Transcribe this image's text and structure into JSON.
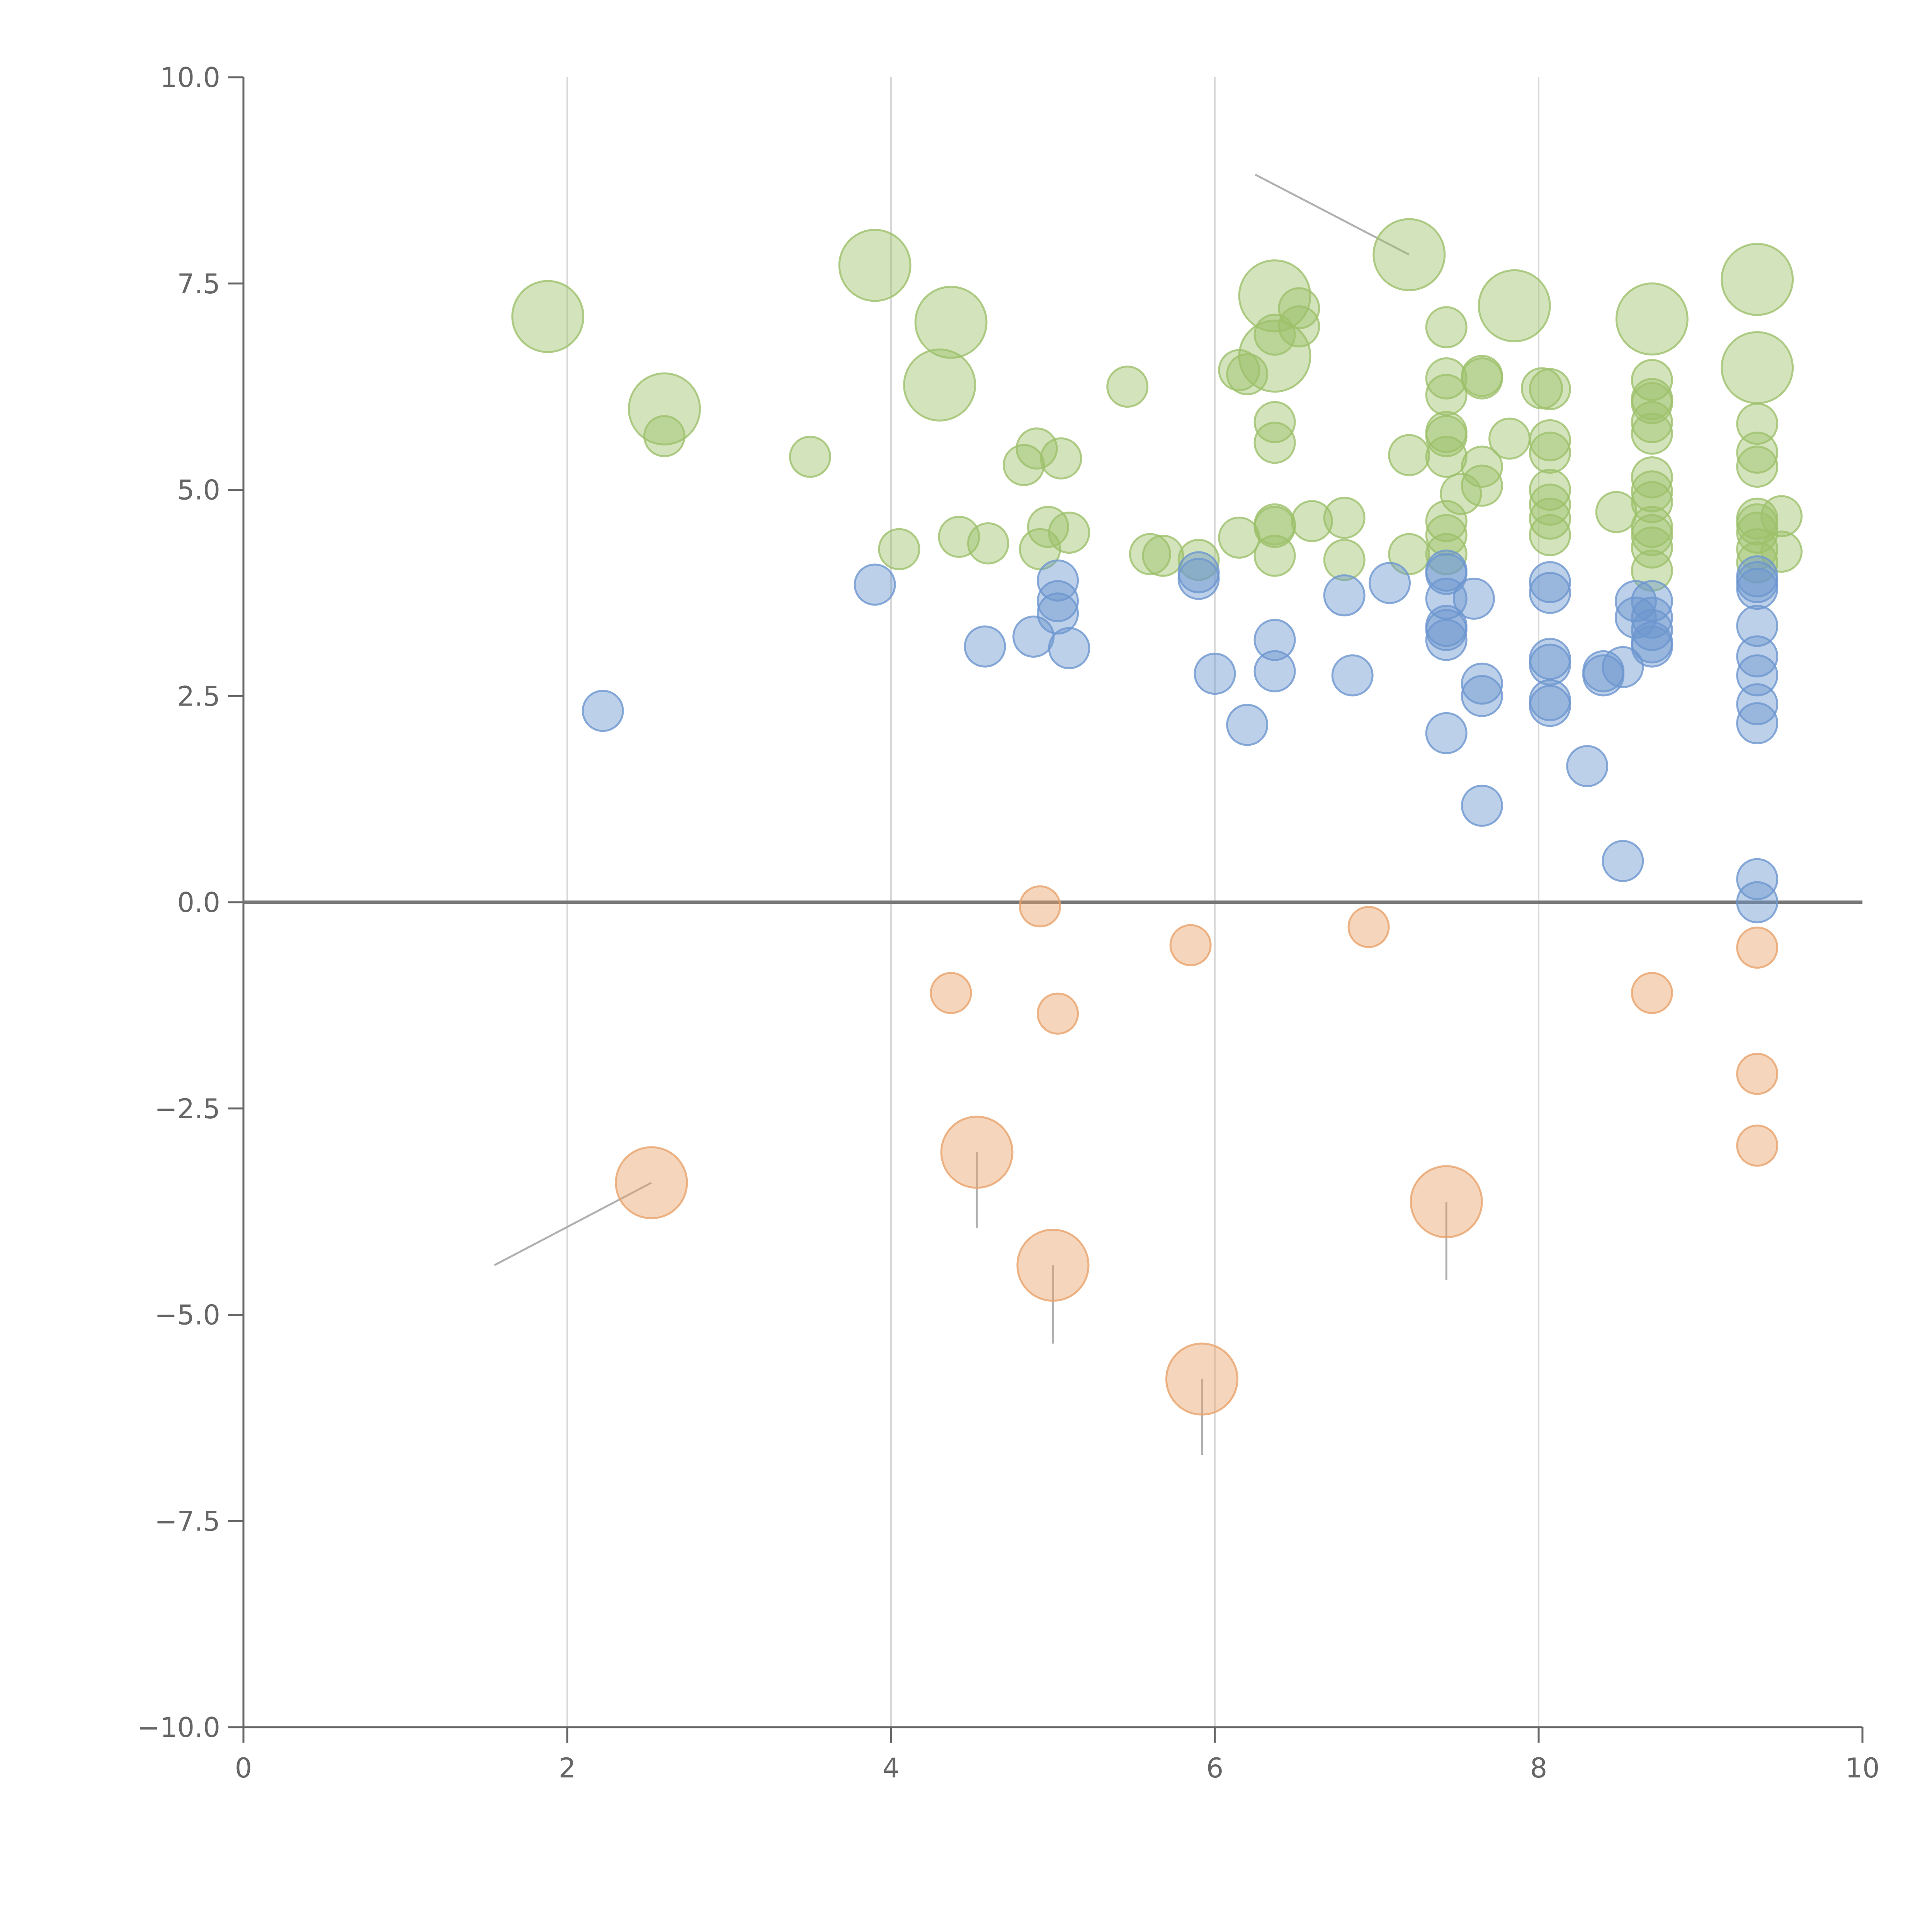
{
  "chart_data": {
    "type": "scatter",
    "title": "",
    "xlabel": "",
    "ylabel": "",
    "xlim": [
      0,
      10
    ],
    "ylim": [
      -10,
      10
    ],
    "x_ticks": [
      0,
      2,
      4,
      6,
      8,
      10
    ],
    "x_tick_labels": [
      "0",
      "2",
      "4",
      "6",
      "8",
      "10"
    ],
    "y_ticks": [
      10,
      7.5,
      5,
      2.5,
      0,
      -2.5,
      -5,
      -7.5,
      -10
    ],
    "y_tick_labels": [
      "10.0",
      "7.5",
      "5.0",
      "2.5",
      "0.0",
      "−2.5",
      "−5.0",
      "−7.5",
      "−10.0"
    ],
    "vertical_gridlines_at": [
      2,
      4,
      6,
      8
    ],
    "zero_line": true,
    "colors": {
      "green": "#9dc16b",
      "blue": "#6d96cf",
      "orange": "#e9a36b",
      "axis": "#666666",
      "grid": "#d9d9d9",
      "zero_line": "#777777",
      "leader": "#b0b0b0"
    },
    "series": [
      {
        "name": "green-large",
        "color": "green",
        "size": "large",
        "points": [
          [
            1.88,
            7.1
          ],
          [
            2.6,
            5.98
          ],
          [
            3.9,
            7.72
          ],
          [
            4.37,
            7.03
          ],
          [
            4.3,
            6.27
          ],
          [
            6.37,
            7.35
          ],
          [
            6.37,
            6.62
          ],
          [
            7.2,
            7.85
          ],
          [
            7.85,
            7.23
          ],
          [
            8.7,
            7.07
          ],
          [
            9.35,
            7.55
          ],
          [
            9.35,
            6.48
          ]
        ]
      },
      {
        "name": "green-small",
        "color": "green",
        "size": "small",
        "points": [
          [
            2.6,
            5.65
          ],
          [
            3.5,
            5.4
          ],
          [
            4.05,
            4.28
          ],
          [
            4.42,
            4.43
          ],
          [
            4.6,
            4.35
          ],
          [
            4.82,
            5.3
          ],
          [
            4.9,
            5.5
          ],
          [
            4.92,
            4.28
          ],
          [
            4.97,
            4.55
          ],
          [
            5.05,
            5.38
          ],
          [
            5.1,
            4.48
          ],
          [
            5.46,
            6.25
          ],
          [
            5.6,
            4.22
          ],
          [
            5.68,
            4.2
          ],
          [
            5.9,
            4.15
          ],
          [
            6.15,
            6.45
          ],
          [
            6.2,
            6.4
          ],
          [
            6.15,
            4.42
          ],
          [
            6.37,
            6.88
          ],
          [
            6.37,
            5.82
          ],
          [
            6.37,
            5.57
          ],
          [
            6.37,
            4.58
          ],
          [
            6.37,
            4.55
          ],
          [
            6.37,
            4.2
          ],
          [
            6.52,
            7.2
          ],
          [
            6.52,
            6.98
          ],
          [
            6.6,
            4.62
          ],
          [
            6.8,
            4.66
          ],
          [
            6.8,
            4.15
          ],
          [
            7.2,
            5.42
          ],
          [
            7.2,
            4.22
          ],
          [
            7.43,
            6.97
          ],
          [
            7.43,
            6.35
          ],
          [
            7.43,
            6.15
          ],
          [
            7.43,
            5.7
          ],
          [
            7.43,
            5.65
          ],
          [
            7.43,
            5.4
          ],
          [
            7.43,
            4.62
          ],
          [
            7.43,
            4.45
          ],
          [
            7.43,
            4.22
          ],
          [
            7.52,
            4.95
          ],
          [
            7.65,
            6.38
          ],
          [
            7.65,
            6.35
          ],
          [
            7.65,
            5.28
          ],
          [
            7.65,
            5.05
          ],
          [
            7.82,
            5.62
          ],
          [
            8.02,
            6.23
          ],
          [
            8.07,
            6.22
          ],
          [
            8.07,
            5.6
          ],
          [
            8.07,
            5.45
          ],
          [
            8.07,
            5.0
          ],
          [
            8.07,
            4.82
          ],
          [
            8.07,
            4.65
          ],
          [
            8.07,
            4.45
          ],
          [
            8.48,
            4.73
          ],
          [
            8.7,
            6.33
          ],
          [
            8.7,
            6.1
          ],
          [
            8.7,
            6.05
          ],
          [
            8.7,
            5.82
          ],
          [
            8.7,
            5.68
          ],
          [
            8.7,
            5.15
          ],
          [
            8.7,
            4.98
          ],
          [
            8.7,
            4.85
          ],
          [
            8.7,
            4.55
          ],
          [
            8.7,
            4.45
          ],
          [
            8.7,
            4.3
          ],
          [
            8.7,
            4.02
          ],
          [
            9.35,
            5.8
          ],
          [
            9.35,
            5.45
          ],
          [
            9.35,
            5.28
          ],
          [
            9.35,
            4.65
          ],
          [
            9.35,
            4.58
          ],
          [
            9.35,
            4.48
          ],
          [
            9.35,
            4.28
          ],
          [
            9.35,
            4.12
          ],
          [
            9.5,
            4.68
          ],
          [
            9.5,
            4.25
          ]
        ]
      },
      {
        "name": "blue",
        "color": "blue",
        "size": "small",
        "points": [
          [
            2.22,
            2.32
          ],
          [
            3.9,
            3.85
          ],
          [
            4.58,
            3.1
          ],
          [
            4.88,
            3.22
          ],
          [
            5.03,
            3.9
          ],
          [
            5.03,
            3.65
          ],
          [
            5.03,
            3.5
          ],
          [
            5.1,
            3.08
          ],
          [
            5.9,
            4.0
          ],
          [
            5.9,
            3.92
          ],
          [
            6.0,
            2.77
          ],
          [
            6.2,
            2.15
          ],
          [
            6.37,
            3.18
          ],
          [
            6.37,
            2.8
          ],
          [
            6.8,
            3.72
          ],
          [
            6.85,
            2.75
          ],
          [
            7.08,
            3.87
          ],
          [
            7.43,
            4.02
          ],
          [
            7.43,
            3.98
          ],
          [
            7.43,
            3.68
          ],
          [
            7.43,
            3.35
          ],
          [
            7.43,
            3.3
          ],
          [
            7.43,
            3.18
          ],
          [
            7.43,
            2.05
          ],
          [
            7.6,
            3.68
          ],
          [
            7.65,
            2.65
          ],
          [
            7.65,
            2.5
          ],
          [
            7.65,
            1.17
          ],
          [
            8.07,
            3.88
          ],
          [
            8.07,
            3.75
          ],
          [
            8.07,
            2.95
          ],
          [
            8.07,
            2.88
          ],
          [
            8.07,
            2.45
          ],
          [
            8.07,
            2.38
          ],
          [
            8.3,
            1.65
          ],
          [
            8.4,
            2.8
          ],
          [
            8.4,
            2.75
          ],
          [
            8.52,
            2.85
          ],
          [
            8.52,
            0.5
          ],
          [
            8.6,
            3.65
          ],
          [
            8.6,
            3.45
          ],
          [
            8.7,
            3.65
          ],
          [
            8.7,
            3.45
          ],
          [
            8.7,
            3.3
          ],
          [
            8.7,
            3.15
          ],
          [
            8.7,
            3.1
          ],
          [
            9.35,
            3.95
          ],
          [
            9.35,
            3.88
          ],
          [
            9.35,
            3.8
          ],
          [
            9.35,
            3.35
          ],
          [
            9.35,
            2.98
          ],
          [
            9.35,
            2.75
          ],
          [
            9.35,
            2.4
          ],
          [
            9.35,
            2.17
          ],
          [
            9.35,
            0.28
          ],
          [
            9.35,
            0.0
          ]
        ]
      },
      {
        "name": "orange-small",
        "color": "orange",
        "size": "small",
        "points": [
          [
            4.37,
            -1.1
          ],
          [
            4.92,
            -0.05
          ],
          [
            5.03,
            -1.35
          ],
          [
            5.85,
            -0.52
          ],
          [
            6.95,
            -0.3
          ],
          [
            8.7,
            -1.1
          ],
          [
            9.35,
            -0.55
          ],
          [
            9.35,
            -2.08
          ],
          [
            9.35,
            -2.95
          ]
        ]
      },
      {
        "name": "orange-large",
        "color": "orange",
        "size": "large",
        "points": [
          [
            2.52,
            -3.4
          ],
          [
            4.53,
            -3.03
          ],
          [
            5.0,
            -4.4
          ],
          [
            5.92,
            -5.78
          ],
          [
            7.43,
            -3.63
          ]
        ]
      }
    ],
    "leader_lines": [
      {
        "from": [
          7.2,
          7.85
        ],
        "to": [
          6.25,
          8.82
        ]
      },
      {
        "from": [
          2.52,
          -3.4
        ],
        "to": [
          1.55,
          -4.4
        ]
      },
      {
        "from": [
          4.53,
          -3.03
        ],
        "to": [
          4.53,
          -3.95
        ]
      },
      {
        "from": [
          5.0,
          -4.4
        ],
        "to": [
          5.0,
          -5.35
        ]
      },
      {
        "from": [
          5.92,
          -5.78
        ],
        "to": [
          5.92,
          -6.7
        ]
      },
      {
        "from": [
          7.43,
          -3.63
        ],
        "to": [
          7.43,
          -4.58
        ]
      }
    ]
  }
}
